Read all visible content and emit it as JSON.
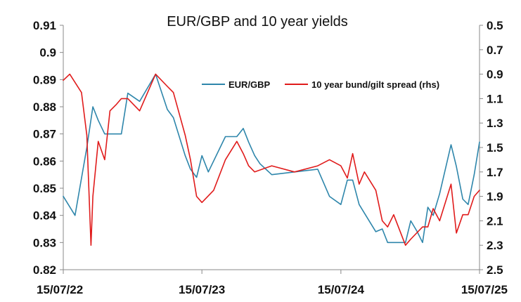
{
  "chart_data": {
    "type": "line",
    "title": "EUR/GBP and 10 year yields",
    "legend_position": "top-right",
    "x_ticks": [
      "15/07/22",
      "15/07/23",
      "15/07/24",
      "15/07/25"
    ],
    "x_range": [
      "15/07/22",
      "15/07/25"
    ],
    "y_left": {
      "min": 0.82,
      "max": 0.91,
      "ticks": [
        "0.91",
        "0.9",
        "0.89",
        "0.88",
        "0.87",
        "0.86",
        "0.85",
        "0.84",
        "0.83",
        "0.82"
      ]
    },
    "y_right": {
      "min": 0.5,
      "max": 2.5,
      "inverted": true,
      "ticks": [
        "0.5",
        "0.7",
        "0.9",
        "1.1",
        "1.3",
        "1.5",
        "1.7",
        "1.9",
        "2.1",
        "2.3",
        "2.5"
      ]
    },
    "grid": false,
    "series": [
      {
        "name": "EUR/GBP",
        "axis": "left",
        "color": "#2E86AB",
        "x": [
          "15/07/22",
          "15/08/22",
          "15/09/22",
          "01/10/22",
          "15/10/22",
          "01/11/22",
          "15/12/22",
          "01/01/23",
          "01/02/23",
          "15/03/23",
          "15/04/23",
          "01/05/23",
          "01/06/23",
          "15/06/23",
          "01/07/23",
          "15/07/23",
          "01/08/23",
          "15/09/23",
          "15/10/23",
          "01/11/23",
          "15/11/23",
          "01/12/23",
          "15/12/23",
          "15/01/24",
          "15/03/24",
          "15/05/24",
          "15/06/24",
          "15/07/24",
          "01/08/24",
          "15/08/24",
          "01/09/24",
          "15/10/24",
          "01/11/24",
          "15/11/24",
          "01/01/25",
          "15/01/25",
          "01/02/25",
          "15/02/25",
          "01/03/25",
          "15/03/25",
          "01/04/25",
          "01/05/25",
          "15/05/25",
          "01/06/25",
          "15/06/25",
          "01/07/25",
          "15/07/25"
        ],
        "y": [
          0.847,
          0.84,
          0.865,
          0.88,
          0.875,
          0.87,
          0.87,
          0.885,
          0.882,
          0.892,
          0.879,
          0.876,
          0.862,
          0.857,
          0.854,
          0.862,
          0.856,
          0.869,
          0.869,
          0.872,
          0.867,
          0.862,
          0.859,
          0.855,
          0.856,
          0.857,
          0.847,
          0.844,
          0.853,
          0.853,
          0.844,
          0.834,
          0.835,
          0.83,
          0.83,
          0.838,
          0.834,
          0.83,
          0.843,
          0.84,
          0.848,
          0.866,
          0.858,
          0.846,
          0.844,
          0.855,
          0.867
        ]
      },
      {
        "name": "10 year bund/gilt spread (rhs)",
        "axis": "right",
        "color": "#E01B1B",
        "x": [
          "15/07/22",
          "01/08/22",
          "01/09/22",
          "15/09/22",
          "26/09/22",
          "01/10/22",
          "15/10/22",
          "01/11/22",
          "15/11/22",
          "01/12/22",
          "15/12/22",
          "01/01/23",
          "01/02/23",
          "15/03/23",
          "15/04/23",
          "01/05/23",
          "01/06/23",
          "15/06/23",
          "01/07/23",
          "15/07/23",
          "15/08/23",
          "15/09/23",
          "15/10/23",
          "01/11/23",
          "15/11/23",
          "01/12/23",
          "15/01/24",
          "15/03/24",
          "15/05/24",
          "15/06/24",
          "15/07/24",
          "01/08/24",
          "15/08/24",
          "01/09/24",
          "15/09/24",
          "15/10/24",
          "01/11/24",
          "15/11/24",
          "01/12/24",
          "01/01/25",
          "15/01/25",
          "15/02/25",
          "01/03/25",
          "15/03/25",
          "01/04/25",
          "01/05/25",
          "15/05/25",
          "01/06/25",
          "15/06/25",
          "01/07/25",
          "15/07/25"
        ],
        "y": [
          0.95,
          0.9,
          1.05,
          1.4,
          2.3,
          1.9,
          1.45,
          1.6,
          1.2,
          1.15,
          1.1,
          1.1,
          1.2,
          0.9,
          1.0,
          1.05,
          1.4,
          1.6,
          1.9,
          1.95,
          1.85,
          1.6,
          1.45,
          1.55,
          1.65,
          1.7,
          1.65,
          1.7,
          1.65,
          1.6,
          1.65,
          1.75,
          1.55,
          1.8,
          1.7,
          1.85,
          2.1,
          2.15,
          2.05,
          2.3,
          2.25,
          2.15,
          2.15,
          2.0,
          2.1,
          1.8,
          2.2,
          2.05,
          2.05,
          1.9,
          1.85
        ]
      }
    ]
  }
}
